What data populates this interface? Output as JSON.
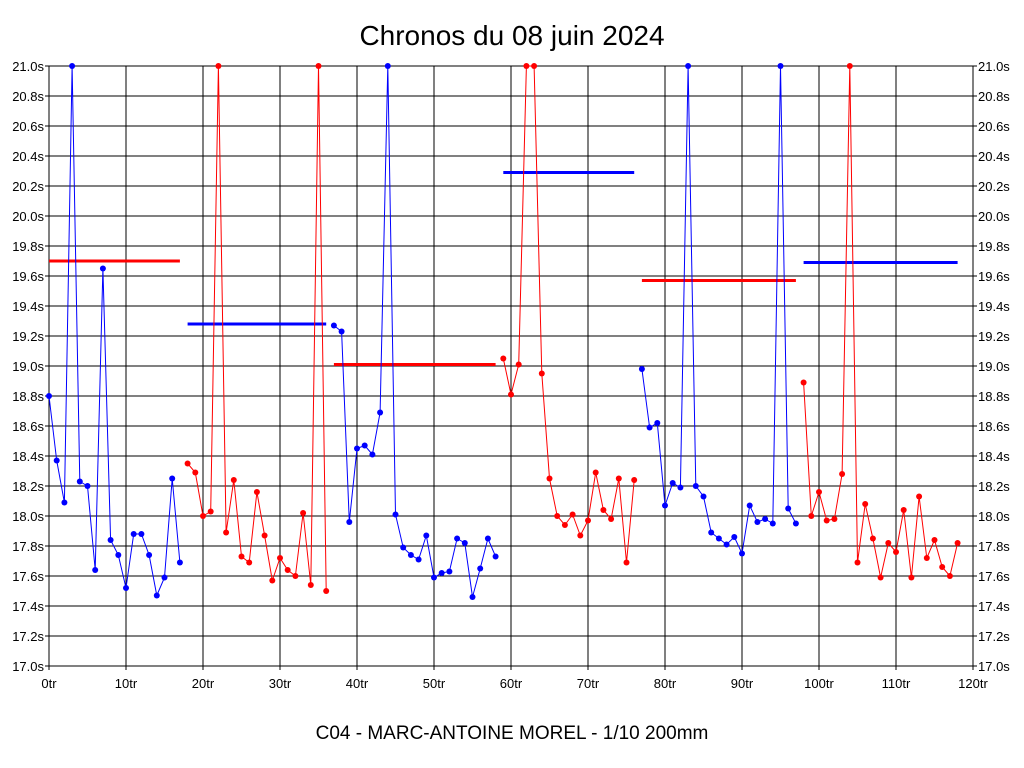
{
  "chart_data": {
    "type": "line",
    "title": "Chronos du 08 juin 2024",
    "subtitle": "C04 - MARC-ANTOINE MOREL - 1/10 200mm",
    "xlim": [
      0,
      120
    ],
    "ylim": [
      17.0,
      21.0
    ],
    "x_ticks": [
      {
        "value": 0,
        "label": "0tr"
      },
      {
        "value": 10,
        "label": "10tr"
      },
      {
        "value": 20,
        "label": "20tr"
      },
      {
        "value": 30,
        "label": "30tr"
      },
      {
        "value": 40,
        "label": "40tr"
      },
      {
        "value": 50,
        "label": "50tr"
      },
      {
        "value": 60,
        "label": "60tr"
      },
      {
        "value": 70,
        "label": "70tr"
      },
      {
        "value": 80,
        "label": "80tr"
      },
      {
        "value": 90,
        "label": "90tr"
      },
      {
        "value": 100,
        "label": "100tr"
      },
      {
        "value": 110,
        "label": "110tr"
      },
      {
        "value": 120,
        "label": "120tr"
      }
    ],
    "y_ticks": [
      {
        "value": 21.0,
        "label": "21.0s"
      },
      {
        "value": 20.8,
        "label": "20.8s"
      },
      {
        "value": 20.6,
        "label": "20.6s"
      },
      {
        "value": 20.4,
        "label": "20.4s"
      },
      {
        "value": 20.2,
        "label": "20.2s"
      },
      {
        "value": 20.0,
        "label": "20.0s"
      },
      {
        "value": 19.8,
        "label": "19.8s"
      },
      {
        "value": 19.6,
        "label": "19.6s"
      },
      {
        "value": 19.4,
        "label": "19.4s"
      },
      {
        "value": 19.2,
        "label": "19.2s"
      },
      {
        "value": 19.0,
        "label": "19.0s"
      },
      {
        "value": 18.8,
        "label": "18.8s"
      },
      {
        "value": 18.6,
        "label": "18.6s"
      },
      {
        "value": 18.4,
        "label": "18.4s"
      },
      {
        "value": 18.2,
        "label": "18.2s"
      },
      {
        "value": 18.0,
        "label": "18.0s"
      },
      {
        "value": 17.8,
        "label": "17.8s"
      },
      {
        "value": 17.6,
        "label": "17.6s"
      },
      {
        "value": 17.4,
        "label": "17.4s"
      },
      {
        "value": 17.2,
        "label": "17.2s"
      },
      {
        "value": 17.0,
        "label": "17.0s"
      }
    ],
    "grid": true,
    "series": [
      {
        "name": "stint-1",
        "color": "#0000ff",
        "x": [
          0,
          1,
          2,
          3,
          4,
          5,
          6,
          7,
          8,
          9,
          10,
          11,
          12,
          13,
          14,
          15,
          16,
          17
        ],
        "y": [
          18.8,
          18.37,
          18.09,
          21.0,
          18.23,
          18.2,
          17.64,
          19.65,
          17.84,
          17.74,
          17.52,
          17.88,
          17.88,
          17.74,
          17.47,
          17.59,
          18.25,
          17.69
        ]
      },
      {
        "name": "stint-2",
        "color": "#ff0000",
        "x": [
          18,
          19,
          20,
          21,
          22,
          23,
          24,
          25,
          26,
          27,
          28,
          29,
          30,
          31,
          32,
          33,
          34,
          35,
          36
        ],
        "y": [
          18.35,
          18.29,
          18.0,
          18.03,
          21.0,
          17.89,
          18.24,
          17.73,
          17.69,
          18.16,
          17.87,
          17.57,
          17.72,
          17.64,
          17.6,
          18.02,
          17.54,
          21.0,
          17.5
        ]
      },
      {
        "name": "stint-3",
        "color": "#0000ff",
        "x": [
          37,
          38,
          39,
          40,
          41,
          42,
          43,
          44,
          45,
          46,
          47,
          48,
          49,
          50,
          51,
          52,
          53,
          54,
          55,
          56,
          57,
          58
        ],
        "y": [
          19.27,
          19.23,
          17.96,
          18.45,
          18.47,
          18.41,
          18.69,
          21.0,
          18.01,
          17.79,
          17.74,
          17.71,
          17.87,
          17.59,
          17.62,
          17.63,
          17.85,
          17.82,
          17.46,
          17.65,
          17.85,
          17.73
        ]
      },
      {
        "name": "stint-4",
        "color": "#ff0000",
        "x": [
          59,
          60,
          61,
          62,
          63,
          64,
          65,
          66,
          67,
          68,
          69,
          70,
          71,
          72,
          73,
          74,
          75,
          76
        ],
        "y": [
          19.05,
          18.81,
          19.01,
          21.0,
          21.0,
          18.95,
          18.25,
          18.0,
          17.94,
          18.01,
          17.87,
          17.97,
          18.29,
          18.04,
          17.98,
          18.25,
          17.69,
          18.24
        ]
      },
      {
        "name": "stint-5",
        "color": "#0000ff",
        "x": [
          77,
          78,
          79,
          80,
          81,
          82,
          83,
          84,
          85,
          86,
          87,
          88,
          89,
          90,
          91,
          92,
          93,
          94,
          95,
          96,
          97
        ],
        "y": [
          18.98,
          18.59,
          18.62,
          18.07,
          18.22,
          18.19,
          21.0,
          18.2,
          18.13,
          17.89,
          17.85,
          17.81,
          17.86,
          17.75,
          18.07,
          17.96,
          17.98,
          17.95,
          21.0,
          18.05,
          17.95
        ]
      },
      {
        "name": "stint-6",
        "color": "#ff0000",
        "x": [
          98,
          99,
          100,
          101,
          102,
          103,
          104,
          105,
          106,
          107,
          108,
          109,
          110,
          111,
          112,
          113,
          114,
          115,
          116,
          117,
          118
        ],
        "y": [
          18.89,
          18.0,
          18.16,
          17.97,
          17.98,
          18.28,
          21.0,
          17.69,
          18.08,
          17.85,
          17.59,
          17.82,
          17.76,
          18.04,
          17.59,
          18.13,
          17.72,
          17.84,
          17.66,
          17.6,
          17.82
        ]
      }
    ],
    "averages": [
      {
        "color": "#ff0000",
        "x_start": 0,
        "x_end": 17,
        "value": 19.7
      },
      {
        "color": "#0000ff",
        "x_start": 18,
        "x_end": 36,
        "value": 19.28
      },
      {
        "color": "#ff0000",
        "x_start": 37,
        "x_end": 58,
        "value": 19.01
      },
      {
        "color": "#0000ff",
        "x_start": 59,
        "x_end": 76,
        "value": 20.29
      },
      {
        "color": "#ff0000",
        "x_start": 77,
        "x_end": 97,
        "value": 19.57
      },
      {
        "color": "#0000ff",
        "x_start": 98,
        "x_end": 118,
        "value": 19.69
      }
    ]
  }
}
